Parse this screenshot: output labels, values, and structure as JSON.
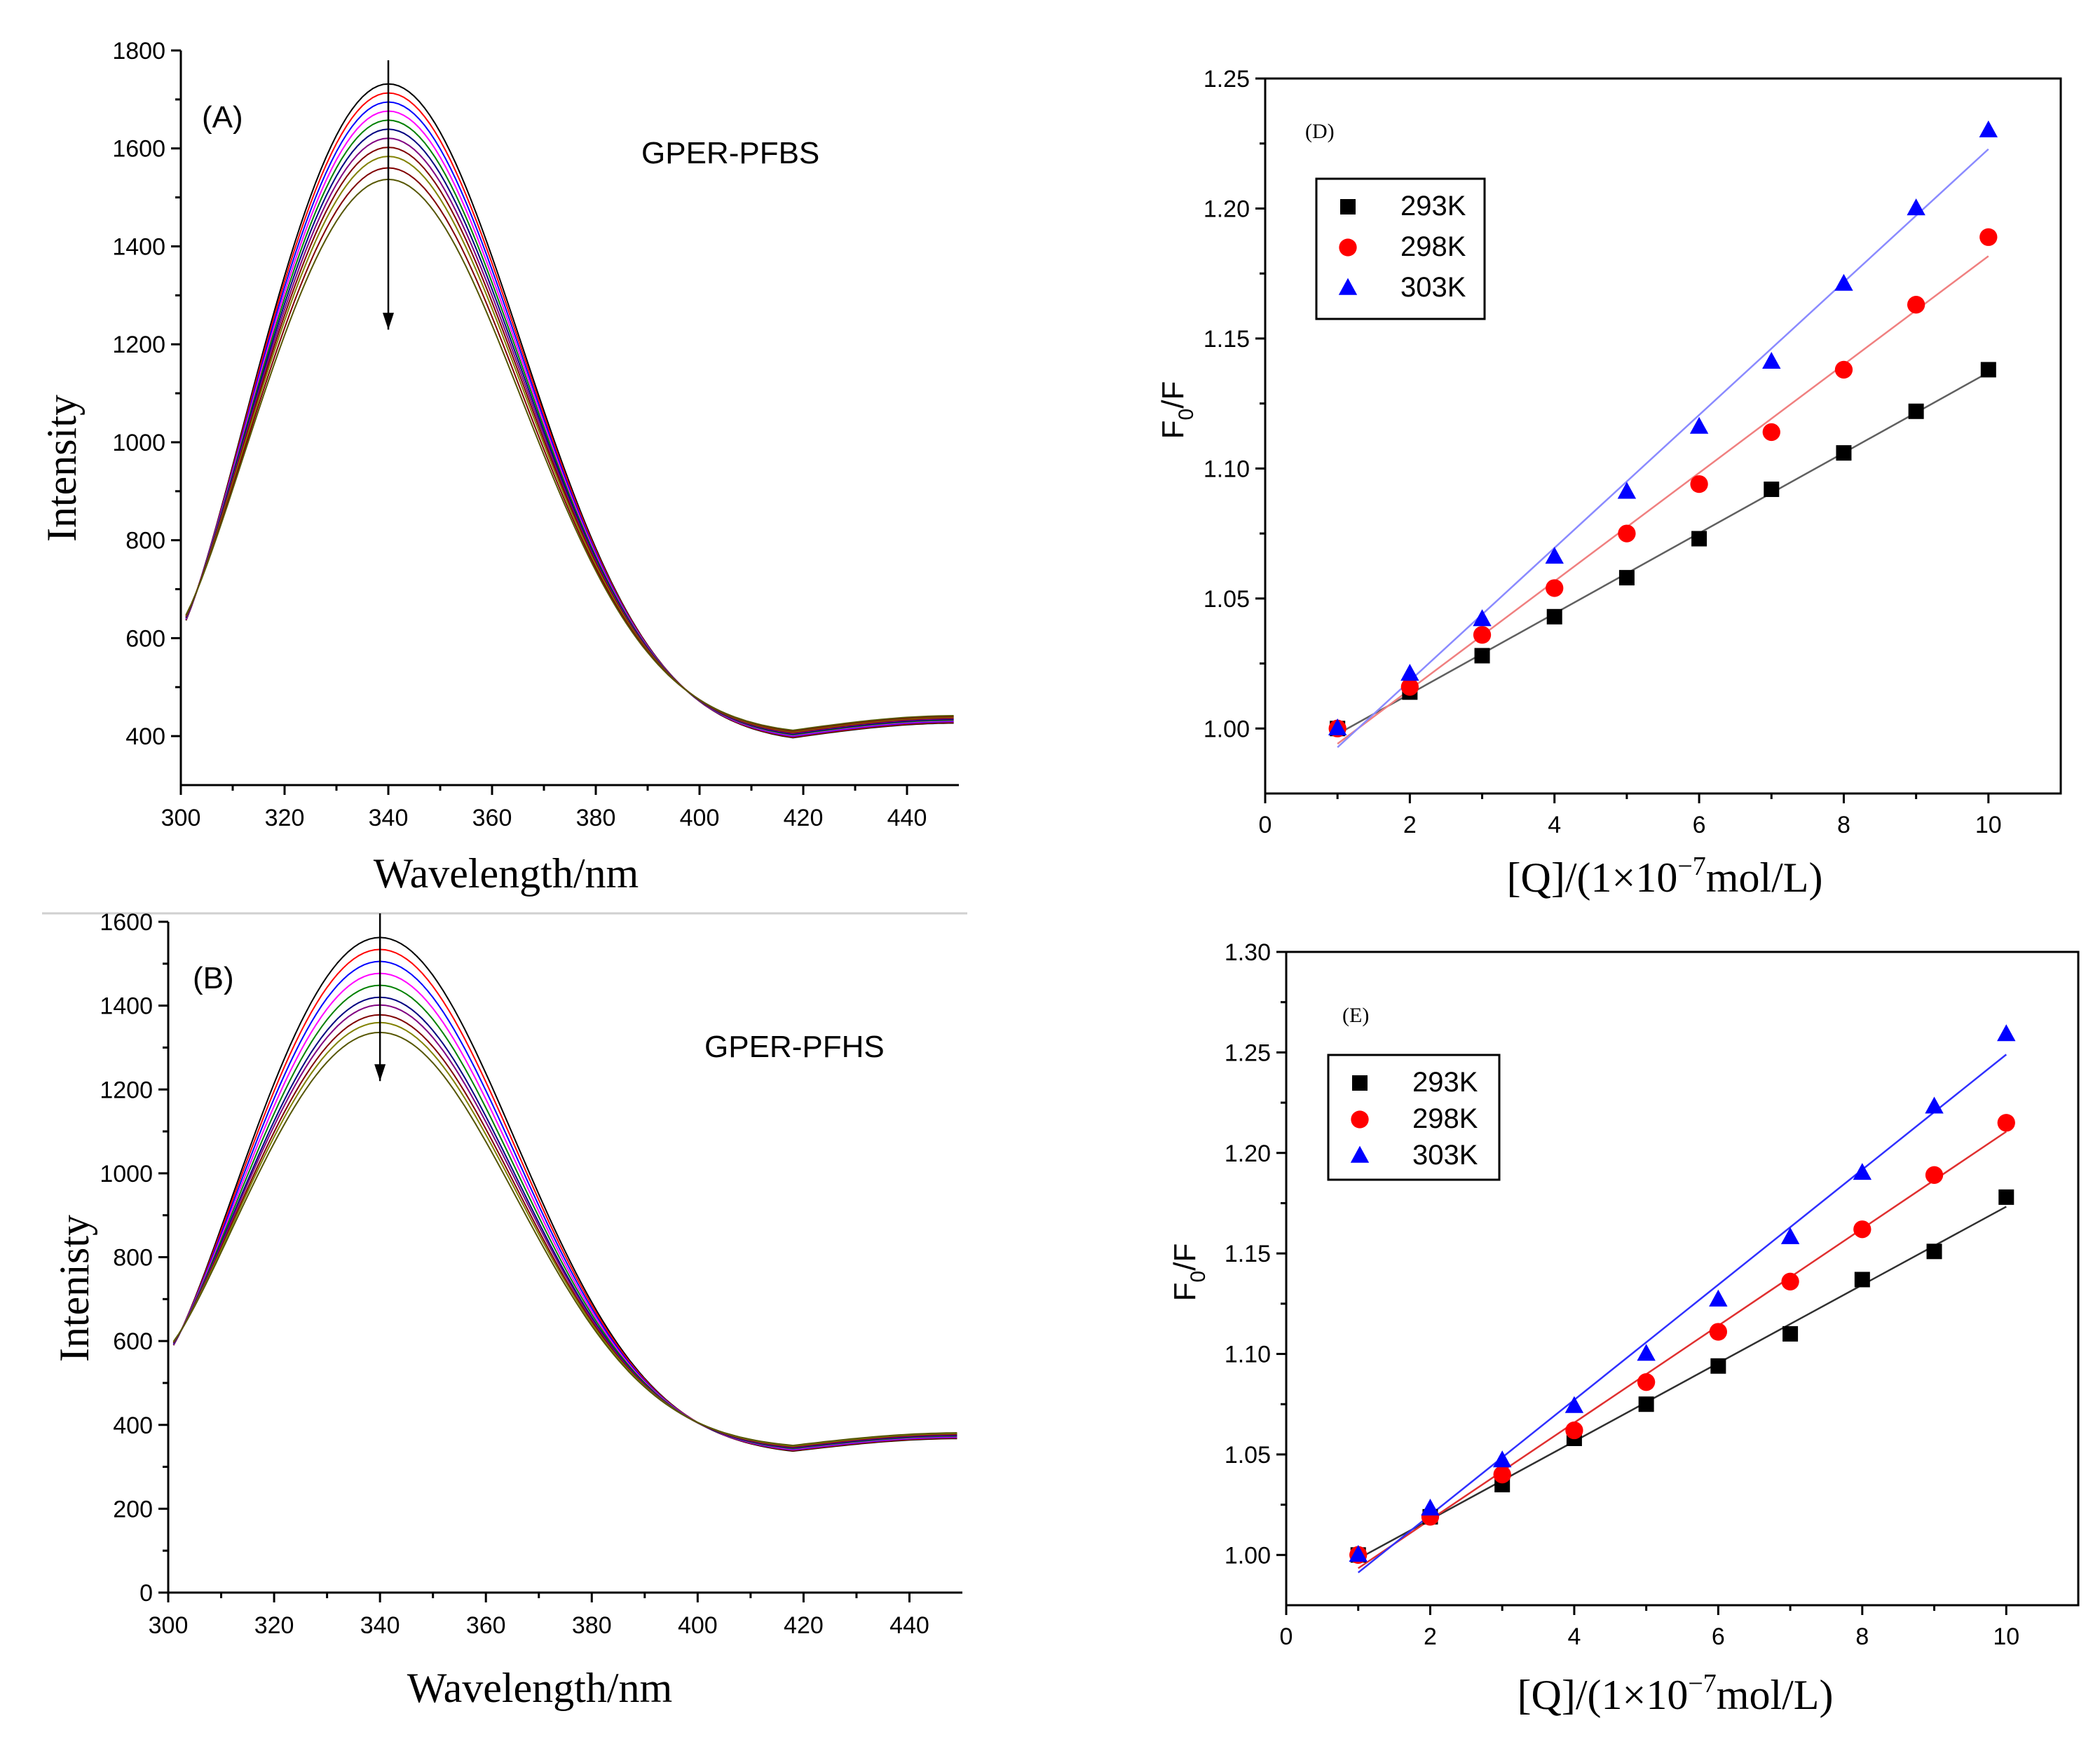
{
  "chart_data": [
    {
      "id": "A",
      "type": "line",
      "panel_label": "(A)",
      "annotation": "GPER-PFBS",
      "xlabel": "Wavelength/nm",
      "ylabel": "Intensity",
      "xlim": [
        300,
        450
      ],
      "ylim": [
        300,
        1800
      ],
      "xticks": [
        300,
        320,
        340,
        360,
        380,
        400,
        420,
        440
      ],
      "yticks": [
        400,
        600,
        800,
        1000,
        1200,
        1400,
        1600,
        1800
      ],
      "arrow_from": [
        340,
        1780
      ],
      "arrow_to": [
        340,
        1230
      ],
      "peak_x": 340,
      "peak_intensities": [
        1740,
        1720,
        1700,
        1680,
        1660,
        1640,
        1620,
        1600,
        1580,
        1555,
        1530
      ],
      "colors": [
        "#000000",
        "#ff0000",
        "#0000ff",
        "#ff00ff",
        "#008000",
        "#000080",
        "#800080",
        "#7f0000",
        "#808000",
        "#800000",
        "#555500"
      ],
      "start_value": 625,
      "min_value": 405,
      "end_value": 435
    },
    {
      "id": "B",
      "type": "line",
      "panel_label": "(B)",
      "annotation": "GPER-PFHS",
      "xlabel": "Wavelength/nm",
      "ylabel": "Intenisty",
      "xlim": [
        300,
        450
      ],
      "ylim": [
        0,
        1600
      ],
      "xticks": [
        300,
        320,
        340,
        360,
        380,
        400,
        420,
        440
      ],
      "yticks": [
        0,
        200,
        400,
        600,
        800,
        1000,
        1200,
        1400,
        1600
      ],
      "arrow_from": [
        340,
        1620
      ],
      "arrow_to": [
        340,
        1220
      ],
      "peak_x": 340,
      "peak_intensities": [
        1570,
        1540,
        1510,
        1480,
        1450,
        1420,
        1400,
        1375,
        1355,
        1330
      ],
      "colors": [
        "#000000",
        "#ff0000",
        "#0000ff",
        "#ff00ff",
        "#008000",
        "#000080",
        "#800080",
        "#7f0000",
        "#808000",
        "#555500"
      ],
      "start_value": 580,
      "min_value": 345,
      "end_value": 375
    },
    {
      "id": "D",
      "type": "scatter",
      "panel_label": "(D)",
      "xlabel": "[Q]/(1×10",
      "xlabel_exp": "−7",
      "xlabel_tail": "mol/L)",
      "ylabel": "F",
      "ylabel_sub": "0",
      "ylabel_tail": "/F",
      "xlim": [
        0,
        11
      ],
      "ylim": [
        0.975,
        1.25
      ],
      "xticks": [
        0,
        2,
        4,
        6,
        8,
        10
      ],
      "yticks": [
        1.0,
        1.05,
        1.1,
        1.15,
        1.2,
        1.25
      ],
      "ytick_labels": [
        "1.00",
        "1.05",
        "1.10",
        "1.15",
        "1.20",
        "1.25"
      ],
      "x": [
        1,
        2,
        3,
        4,
        5,
        6,
        7,
        8,
        9,
        10
      ],
      "series": [
        {
          "name": "293K",
          "marker": "square",
          "color": "#000000",
          "fit_color": "#606060",
          "values": [
            1.0,
            1.014,
            1.028,
            1.043,
            1.058,
            1.073,
            1.092,
            1.106,
            1.122,
            1.138
          ]
        },
        {
          "name": "298K",
          "marker": "circle",
          "color": "#ff0000",
          "fit_color": "#f08080",
          "values": [
            1.0,
            1.016,
            1.036,
            1.054,
            1.075,
            1.094,
            1.114,
            1.138,
            1.163,
            1.189
          ]
        },
        {
          "name": "303K",
          "marker": "triangle",
          "color": "#0000ff",
          "fit_color": "#8a8aff",
          "values": [
            1.0,
            1.021,
            1.042,
            1.066,
            1.091,
            1.116,
            1.141,
            1.171,
            1.2,
            1.23
          ]
        }
      ]
    },
    {
      "id": "E",
      "type": "scatter",
      "panel_label": "(E)",
      "xlabel": "[Q]/(1×10",
      "xlabel_exp": "−7",
      "xlabel_tail": "mol/L)",
      "ylabel": "F",
      "ylabel_sub": "0",
      "ylabel_tail": "/F",
      "xlim": [
        0,
        11
      ],
      "ylim": [
        0.975,
        1.3
      ],
      "xticks": [
        0,
        2,
        4,
        6,
        8,
        10
      ],
      "yticks": [
        1.0,
        1.05,
        1.1,
        1.15,
        1.2,
        1.25,
        1.3
      ],
      "ytick_labels": [
        "1.00",
        "1.05",
        "1.10",
        "1.15",
        "1.20",
        "1.25",
        "1.30"
      ],
      "x": [
        1,
        2,
        3,
        4,
        5,
        6,
        7,
        8,
        9,
        10
      ],
      "series": [
        {
          "name": "293K",
          "marker": "square",
          "color": "#000000",
          "fit_color": "#303030",
          "values": [
            1.0,
            1.019,
            1.035,
            1.058,
            1.075,
            1.094,
            1.11,
            1.137,
            1.151,
            1.178
          ]
        },
        {
          "name": "298K",
          "marker": "circle",
          "color": "#ff0000",
          "fit_color": "#e03030",
          "values": [
            1.0,
            1.019,
            1.04,
            1.062,
            1.086,
            1.111,
            1.136,
            1.162,
            1.189,
            1.215
          ]
        },
        {
          "name": "303K",
          "marker": "triangle",
          "color": "#0000ff",
          "fit_color": "#3030ff",
          "values": [
            1.0,
            1.023,
            1.047,
            1.074,
            1.1,
            1.127,
            1.158,
            1.19,
            1.223,
            1.259
          ]
        }
      ]
    }
  ]
}
